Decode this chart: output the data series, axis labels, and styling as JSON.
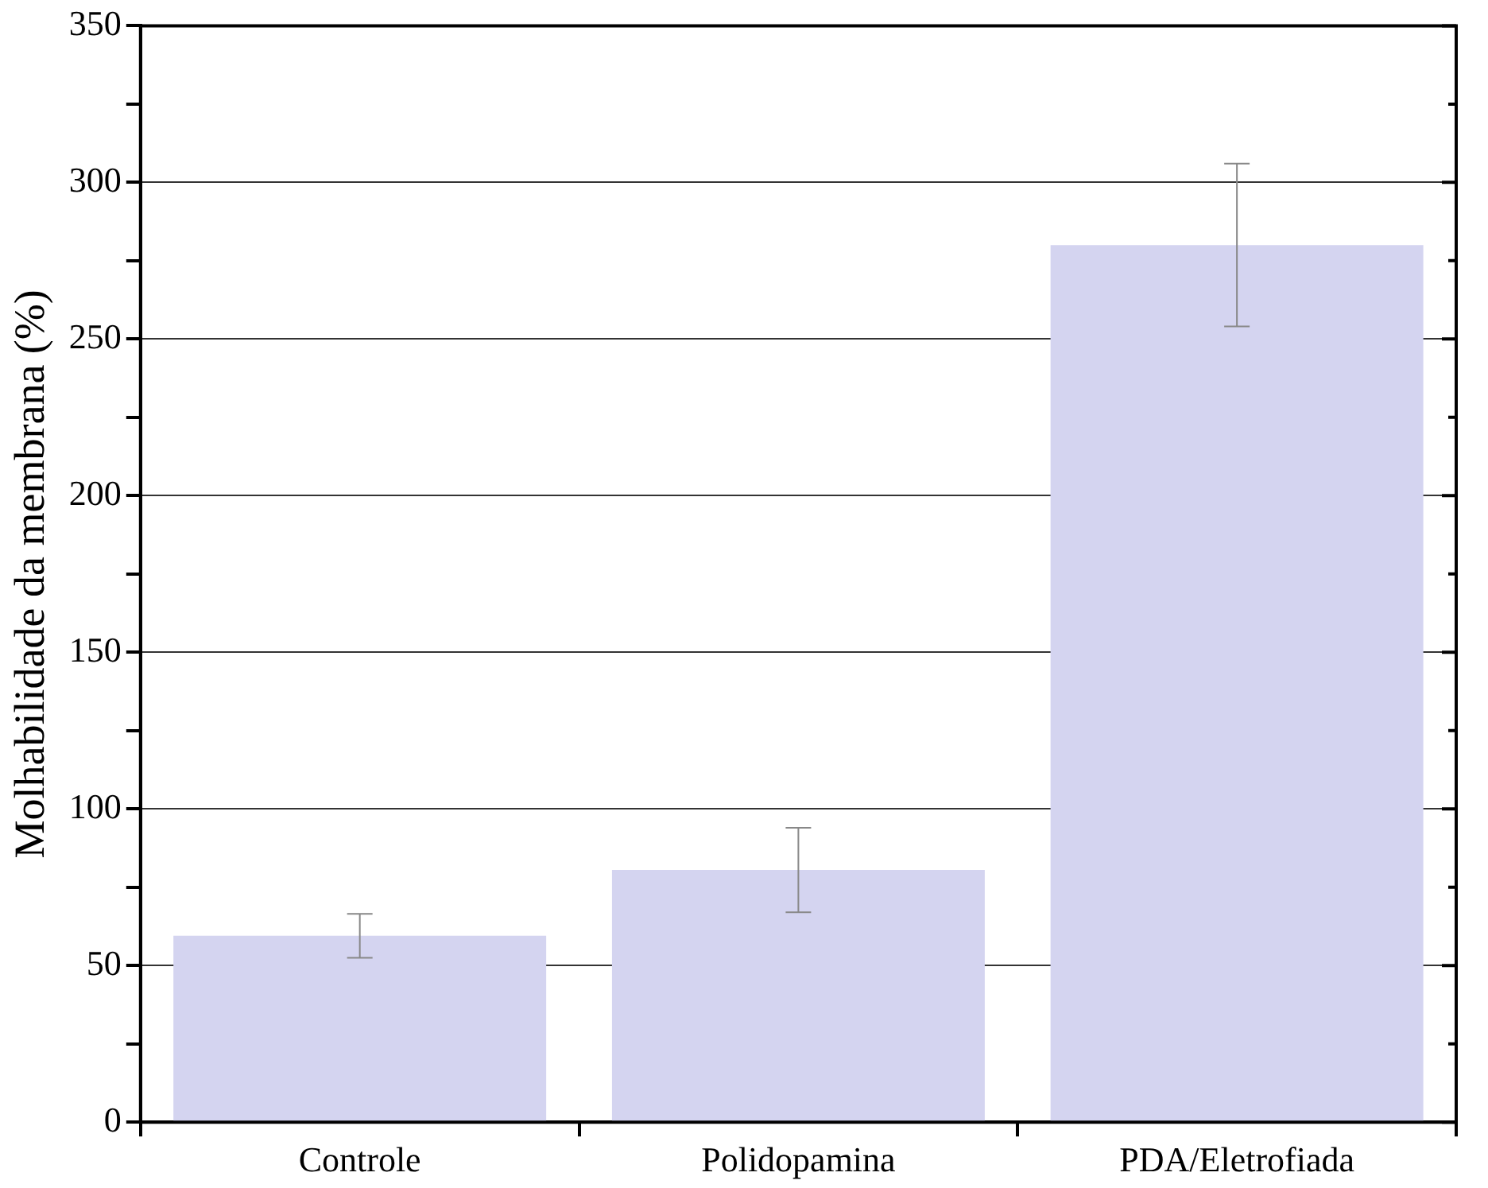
{
  "chart_data": {
    "type": "bar",
    "ylabel": "Molhabilidade da membrana (%)",
    "categories": [
      "Controle",
      "Polidopamina",
      "PDA/Eletrofiada"
    ],
    "values": [
      59.5,
      80.5,
      280
    ],
    "errors": [
      7,
      13.5,
      26
    ],
    "color": "#d4d4f0",
    "ylim": [
      0,
      350
    ],
    "yticks": [
      0,
      {
        "value": 25,
        "label": null
      },
      50,
      {
        "value": 75,
        "label": null
      },
      100,
      {
        "value": 125,
        "label": null
      },
      150,
      {
        "value": 175,
        "label": null
      },
      200,
      {
        "value": 225,
        "label": null
      },
      250,
      {
        "value": 275,
        "label": null
      },
      300,
      {
        "value": 325,
        "label": null
      },
      350
    ],
    "grid": "y"
  }
}
